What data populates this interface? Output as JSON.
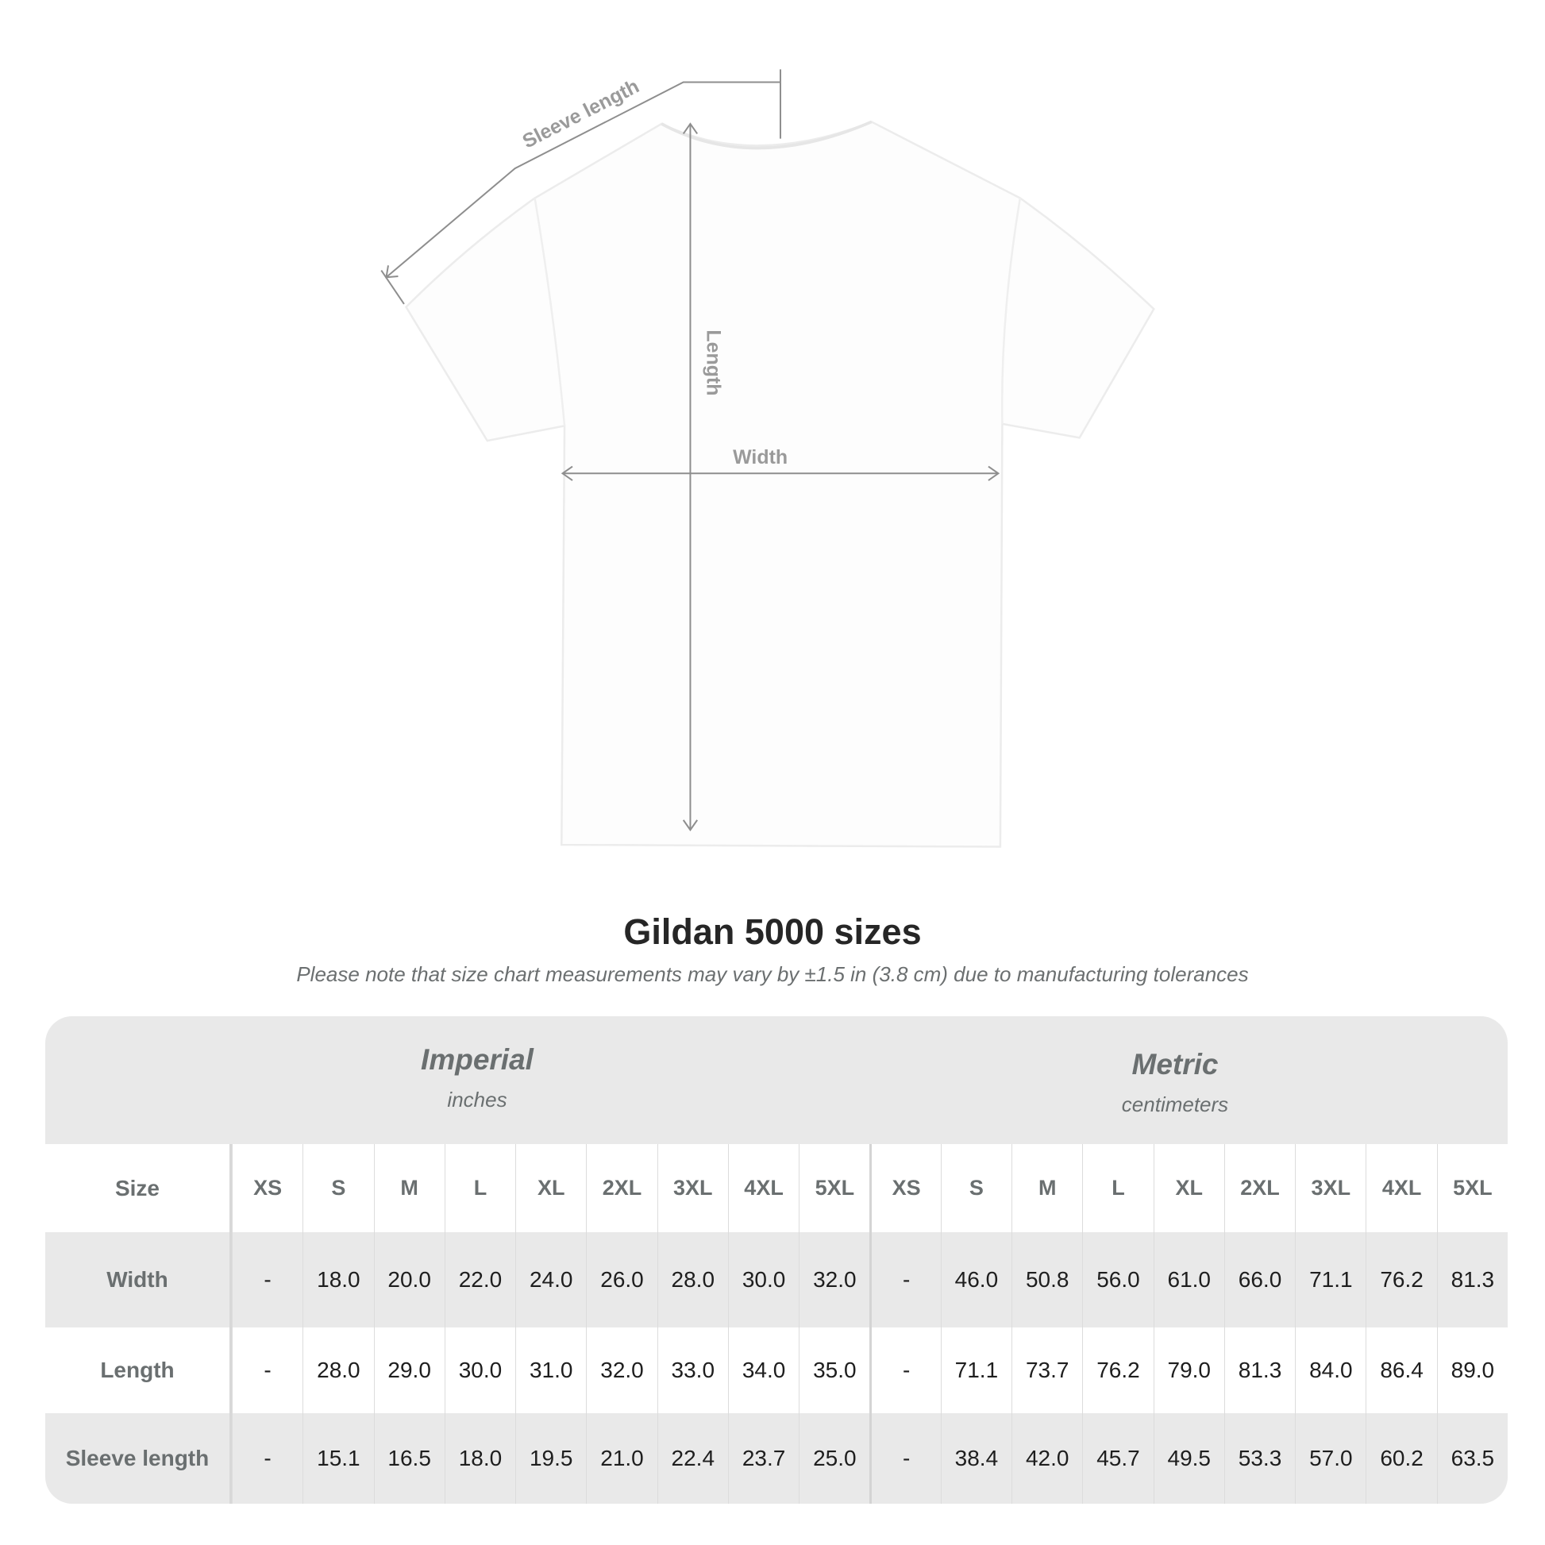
{
  "diagram": {
    "labels": {
      "sleeve": "Sleeve length",
      "length": "Length",
      "width": "Width"
    },
    "line_color": "#8e8e8e",
    "shirt_color": "#ffffff"
  },
  "title": "Gildan 5000 sizes",
  "note": "Please note that size chart measurements may vary by ±1.5 in (3.8 cm) due to manufacturing tolerances",
  "table": {
    "imperial": {
      "name": "Imperial",
      "unit": "inches"
    },
    "metric": {
      "name": "Metric",
      "unit": "centimeters"
    },
    "size_label": "Size",
    "sizes": [
      "XS",
      "S",
      "M",
      "L",
      "XL",
      "2XL",
      "3XL",
      "4XL",
      "5XL"
    ],
    "rows": [
      {
        "label": "Width",
        "imperial": [
          "-",
          "18.0",
          "20.0",
          "22.0",
          "24.0",
          "26.0",
          "28.0",
          "30.0",
          "32.0"
        ],
        "metric": [
          "-",
          "46.0",
          "50.8",
          "56.0",
          "61.0",
          "66.0",
          "71.1",
          "76.2",
          "81.3"
        ]
      },
      {
        "label": "Length",
        "imperial": [
          "-",
          "28.0",
          "29.0",
          "30.0",
          "31.0",
          "32.0",
          "33.0",
          "34.0",
          "35.0"
        ],
        "metric": [
          "-",
          "71.1",
          "73.7",
          "76.2",
          "79.0",
          "81.3",
          "84.0",
          "86.4",
          "89.0"
        ]
      },
      {
        "label": "Sleeve length",
        "imperial": [
          "-",
          "15.1",
          "16.5",
          "18.0",
          "19.5",
          "21.0",
          "22.4",
          "23.7",
          "25.0"
        ],
        "metric": [
          "-",
          "38.4",
          "42.0",
          "45.7",
          "49.5",
          "53.3",
          "57.0",
          "60.2",
          "63.5"
        ]
      }
    ]
  }
}
